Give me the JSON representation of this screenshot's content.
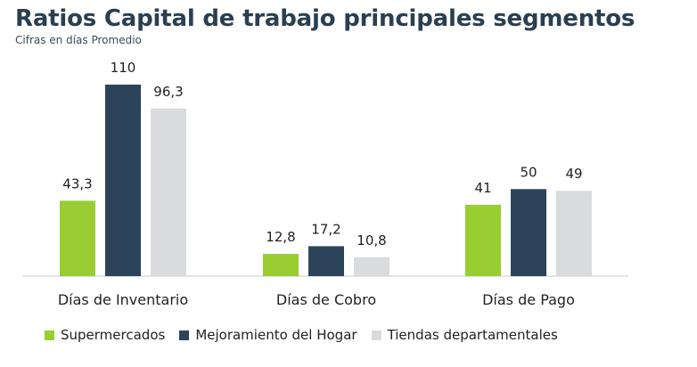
{
  "title": "Ratios Capital de trabajo principales segmentos",
  "subtitle": "Cifras en  días Promedio",
  "colors": {
    "supermercados": "#9acd32",
    "mejoramiento": "#2c445a",
    "tiendas": "#d9dbdd",
    "axis": "#c8c8c8",
    "text": "#222222"
  },
  "chart_data": {
    "type": "bar",
    "categories": [
      "Días de Inventario",
      "Días de Cobro",
      "Días de Pago"
    ],
    "series": [
      {
        "name": "Supermercados",
        "values": [
          43.3,
          12.8,
          41
        ],
        "labels": [
          "43,3",
          "12,8",
          "41"
        ]
      },
      {
        "name": "Mejoramiento del Hogar",
        "values": [
          110,
          17.2,
          50
        ],
        "labels": [
          "110",
          "17,2",
          "50"
        ]
      },
      {
        "name": "Tiendas departamentales",
        "values": [
          96.3,
          10.8,
          49
        ],
        "labels": [
          "96,3",
          "10,8",
          "49"
        ]
      }
    ],
    "ylim": [
      0,
      110
    ],
    "grid": false,
    "legend": "bottom"
  }
}
